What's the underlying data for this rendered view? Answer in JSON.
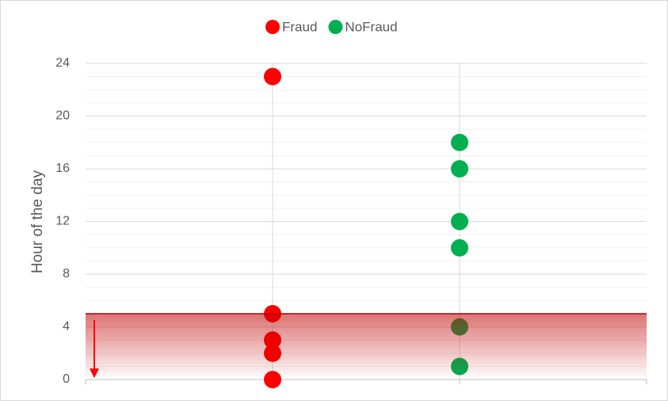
{
  "chart_data": {
    "type": "scatter",
    "ylabel": "Hour of the day",
    "series": [
      {
        "name": "Fraud",
        "color": "#ff0000",
        "x": [
          1,
          1,
          1,
          1,
          1
        ],
        "values": [
          23,
          5,
          3,
          2,
          0
        ]
      },
      {
        "name": "NoFraud",
        "color": "#00b050",
        "x": [
          2,
          2,
          2,
          2,
          2,
          2
        ],
        "values": [
          18,
          16,
          12,
          10,
          4,
          1
        ]
      }
    ],
    "xlim": [
      0,
      3
    ],
    "ylim": [
      0,
      24
    ],
    "yticks": [
      0,
      4,
      8,
      12,
      16,
      20,
      24
    ],
    "yminor": 1,
    "grid": true,
    "legend": "top",
    "highlight": {
      "range": [
        0,
        5
      ],
      "color": "#c00000"
    }
  }
}
